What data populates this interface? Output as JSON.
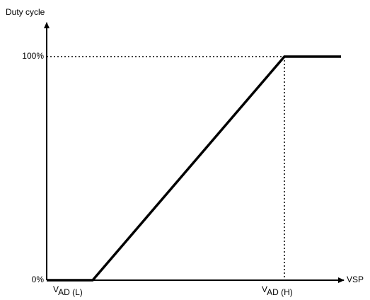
{
  "diagram": {
    "y_axis_title": "Duty cycle",
    "x_axis_title": "VSP",
    "y_labels": [
      "100%",
      "0%"
    ],
    "x_labels": [
      {
        "main": "V",
        "sub": "AD (L)"
      },
      {
        "main": "V",
        "sub": "AD (H)"
      }
    ]
  }
}
